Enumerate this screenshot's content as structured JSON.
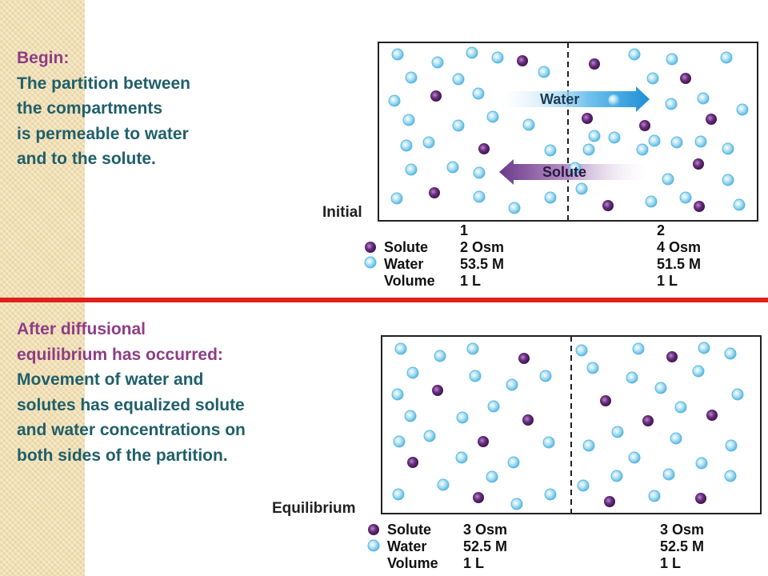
{
  "colors": {
    "solute": "#5a2570",
    "water": "#8fd3ee",
    "divider": "#e0201b",
    "heading": "#8e3d86",
    "body_text": "#1f5f6a",
    "water_arrow": "#1e8fd6",
    "solute_arrow": "#6a3a8a"
  },
  "top_text": {
    "heading": "Begin:",
    "lines": [
      "The partition between",
      "the compartments",
      "is permeable to water",
      "and to the solute."
    ]
  },
  "bottom_text": {
    "lines_head": [
      "After diffusional",
      "equilibrium has occurred:"
    ],
    "lines": [
      "Movement of water and",
      "solutes has equalized solute",
      "and water concentrations on",
      "both sides of the partition."
    ]
  },
  "initial": {
    "label": "Initial",
    "water_arrow_label": "Water",
    "solute_arrow_label": "Solute",
    "legend": [
      "Solute",
      "Water",
      "Volume"
    ],
    "compartment_1": [
      "1",
      "2 Osm",
      "53.5 M",
      "1 L"
    ],
    "compartment_2": [
      "2",
      "4 Osm",
      "51.5 M",
      "1 L"
    ]
  },
  "equilibrium": {
    "label": "Equilibrium",
    "legend": [
      "Solute",
      "Water",
      "Volume"
    ],
    "compartment_1": [
      "3 Osm",
      "52.5 M",
      "1 L"
    ],
    "compartment_2": [
      "3 Osm",
      "52.5 M",
      "1 L"
    ]
  }
}
